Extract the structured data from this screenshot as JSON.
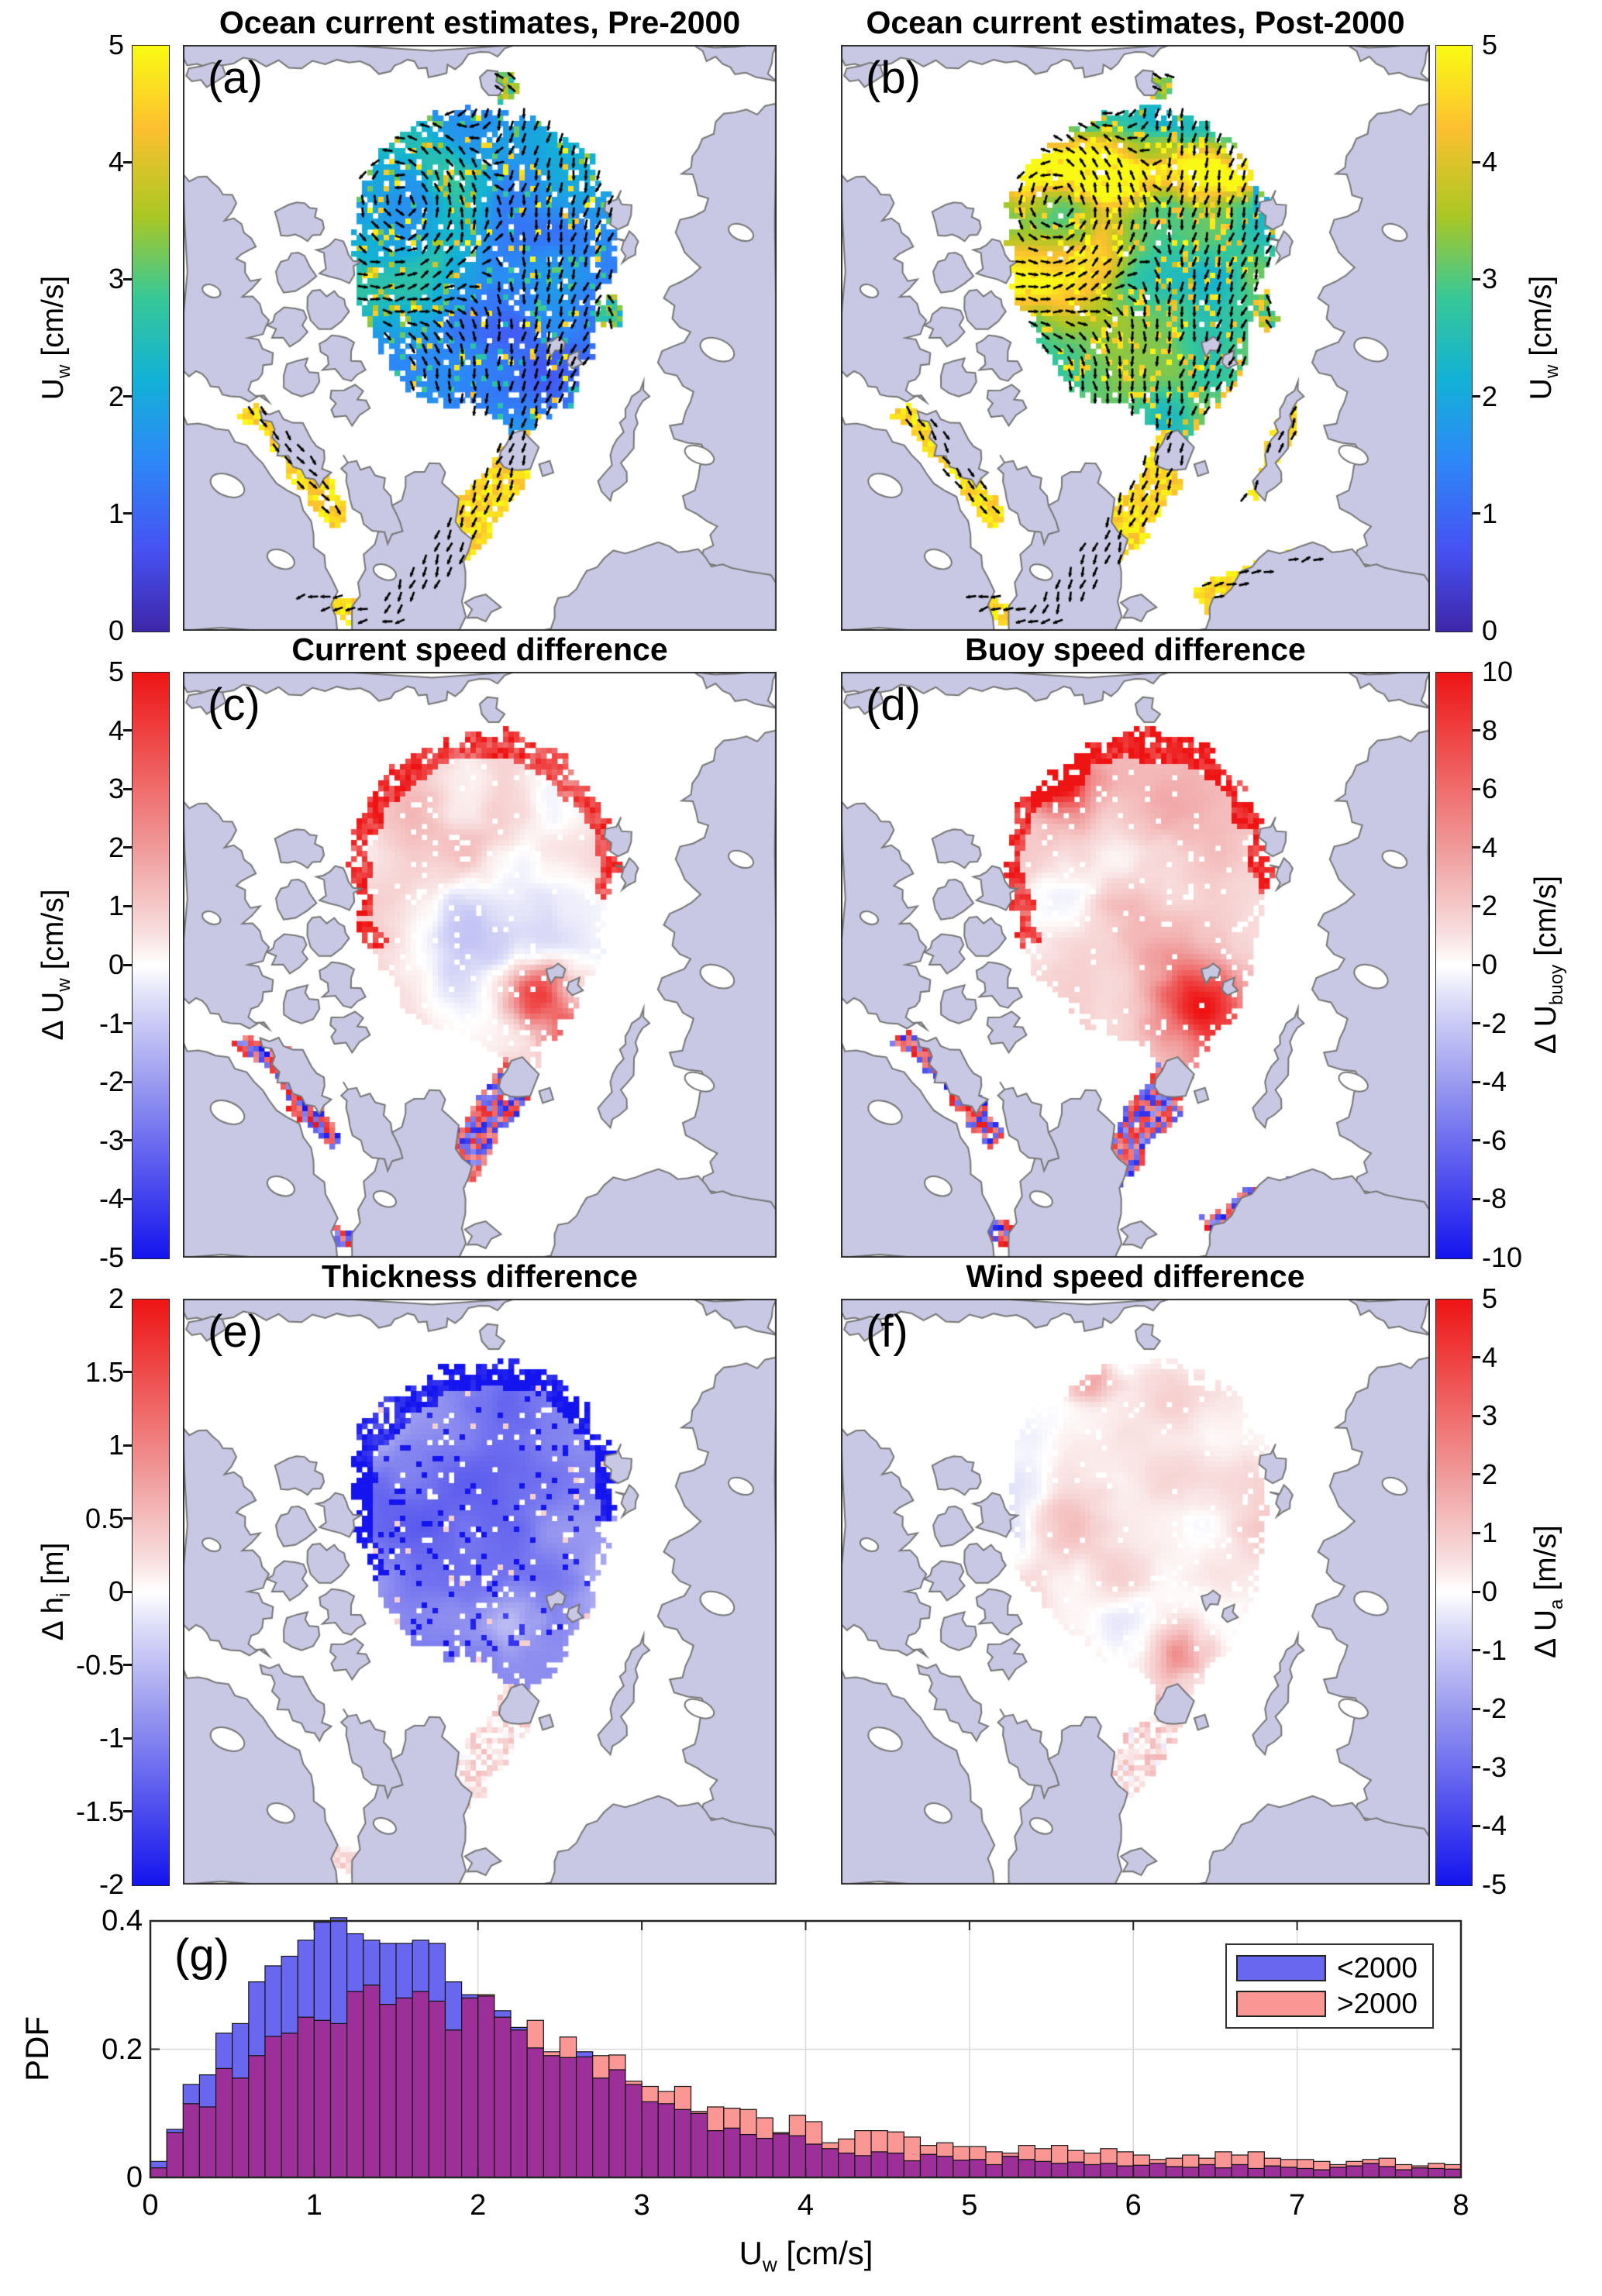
{
  "figure": {
    "background": "#ffffff"
  },
  "map_style": {
    "land_color": "#c8c8e4",
    "ocean_color": "#ffffff",
    "coast_color": "#777777",
    "frame_color": "#2b2b2b",
    "quiver_color": "#000000"
  },
  "colormaps": {
    "parula": [
      [
        "#3e26a8",
        0
      ],
      [
        "#4652f3",
        0.14
      ],
      [
        "#2d87f7",
        0.29
      ],
      [
        "#12b1d6",
        0.43
      ],
      [
        "#37c897",
        0.57
      ],
      [
        "#abc723",
        0.71
      ],
      [
        "#fdc02f",
        0.86
      ],
      [
        "#f9fb14",
        1
      ]
    ],
    "redblue": [
      [
        "#1414ee",
        0
      ],
      [
        "#4040ef",
        0.1
      ],
      [
        "#9a9af0",
        0.3
      ],
      [
        "#dcdcf8",
        0.44
      ],
      [
        "#ffffff",
        0.5
      ],
      [
        "#f8dcdc",
        0.56
      ],
      [
        "#f09a9a",
        0.7
      ],
      [
        "#ef4040",
        0.9
      ],
      [
        "#ee1414",
        1
      ]
    ]
  },
  "panels": {
    "a": {
      "letter": "(a)",
      "title": "Ocean current estimates, Pre-2000",
      "colorbar": {
        "side": "left",
        "range": [
          0,
          5
        ],
        "colormap": "parula",
        "ticks": [
          "5",
          "4",
          "3",
          "2",
          "1",
          "0"
        ],
        "label": {
          "pre": "U",
          "sub": "w",
          "post": " [cm/s]"
        }
      }
    },
    "b": {
      "letter": "(b)",
      "title": "Ocean current estimates, Post-2000",
      "colorbar": {
        "side": "right",
        "range": [
          0,
          5
        ],
        "colormap": "parula",
        "ticks": [
          "5",
          "4",
          "3",
          "2",
          "1",
          "0"
        ],
        "label": {
          "pre": "U",
          "sub": "w",
          "post": " [cm/s]"
        }
      }
    },
    "c": {
      "letter": "(c)",
      "title": "Current speed difference",
      "colorbar": {
        "side": "left",
        "range": [
          -5,
          5
        ],
        "colormap": "redblue",
        "ticks": [
          "5",
          "4",
          "3",
          "2",
          "1",
          "0",
          "-1",
          "-2",
          "-3",
          "-4",
          "-5"
        ],
        "label": {
          "pre": "Δ U",
          "sub": "w",
          "post": " [cm/s]"
        }
      }
    },
    "d": {
      "letter": "(d)",
      "title": "Buoy speed difference",
      "colorbar": {
        "side": "right",
        "range": [
          -10,
          10
        ],
        "colormap": "redblue",
        "ticks": [
          "10",
          "8",
          "6",
          "4",
          "2",
          "0",
          "-2",
          "-4",
          "-6",
          "-8",
          "-10"
        ],
        "label": {
          "pre": "Δ U",
          "sub": "buoy",
          "post": " [cm/s]"
        }
      }
    },
    "e": {
      "letter": "(e)",
      "title": "Thickness difference",
      "colorbar": {
        "side": "left",
        "range": [
          -2,
          2
        ],
        "colormap": "redblue",
        "ticks": [
          "2",
          "1.5",
          "1",
          "0.5",
          "0",
          "-0.5",
          "-1",
          "-1.5",
          "-2"
        ],
        "label": {
          "pre": "Δ h",
          "sub": "i",
          "post": " [m]"
        }
      }
    },
    "f": {
      "letter": "(f)",
      "title": "Wind speed difference",
      "colorbar": {
        "side": "right",
        "range": [
          -5,
          5
        ],
        "colormap": "redblue",
        "ticks": [
          "5",
          "4",
          "3",
          "2",
          "1",
          "0",
          "-1",
          "-2",
          "-3",
          "-4",
          "-5"
        ],
        "label": {
          "pre": "Δ U",
          "sub": "a",
          "post": " [m/s]"
        }
      }
    },
    "g": {
      "letter": "(g)"
    }
  },
  "chart_data": {
    "type": "histogram",
    "xlabel": {
      "pre": "U",
      "sub": "w",
      "post": " [cm/s]"
    },
    "ylabel": "PDF",
    "xlim": [
      0,
      8
    ],
    "ylim": [
      0,
      0.4
    ],
    "xticks": [
      "0",
      "1",
      "2",
      "3",
      "4",
      "5",
      "6",
      "7",
      "8"
    ],
    "yticks": [
      "0",
      "0.2",
      "0.4"
    ],
    "bin_start": 0,
    "bin_width": 0.1,
    "grid": true,
    "overlap_color": "#9c2f98",
    "legend": {
      "position": "top-right",
      "entries": [
        {
          "label": "<2000",
          "color": "#6966f0"
        },
        {
          "label": ">2000",
          "color": "#fa9795"
        }
      ]
    },
    "series": [
      {
        "name": "<2000",
        "color": "#6966f0",
        "values": [
          0.025,
          0.075,
          0.145,
          0.16,
          0.225,
          0.24,
          0.305,
          0.33,
          0.345,
          0.37,
          0.398,
          0.405,
          0.38,
          0.37,
          0.365,
          0.365,
          0.37,
          0.365,
          0.305,
          0.285,
          0.283,
          0.26,
          0.234,
          0.202,
          0.19,
          0.187,
          0.196,
          0.155,
          0.168,
          0.145,
          0.118,
          0.115,
          0.106,
          0.1,
          0.073,
          0.077,
          0.067,
          0.061,
          0.068,
          0.065,
          0.052,
          0.045,
          0.038,
          0.034,
          0.04,
          0.038,
          0.026,
          0.036,
          0.033,
          0.027,
          0.028,
          0.02,
          0.033,
          0.028,
          0.025,
          0.022,
          0.024,
          0.02,
          0.022,
          0.018,
          0.019,
          0.022,
          0.017,
          0.016,
          0.02,
          0.015,
          0.02,
          0.014,
          0.018,
          0.016,
          0.014,
          0.012,
          0.016,
          0.018,
          0.022,
          0.017,
          0.012,
          0.015,
          0.014,
          0.013
        ]
      },
      {
        "name": ">2000",
        "color": "#fa9795",
        "values": [
          0.015,
          0.07,
          0.115,
          0.11,
          0.17,
          0.155,
          0.19,
          0.22,
          0.225,
          0.25,
          0.245,
          0.24,
          0.29,
          0.3,
          0.27,
          0.28,
          0.29,
          0.275,
          0.23,
          0.28,
          0.285,
          0.25,
          0.23,
          0.245,
          0.196,
          0.219,
          0.188,
          0.19,
          0.191,
          0.15,
          0.142,
          0.134,
          0.142,
          0.103,
          0.11,
          0.108,
          0.106,
          0.093,
          0.07,
          0.097,
          0.087,
          0.054,
          0.06,
          0.073,
          0.073,
          0.071,
          0.063,
          0.05,
          0.054,
          0.048,
          0.048,
          0.04,
          0.038,
          0.05,
          0.045,
          0.05,
          0.042,
          0.038,
          0.045,
          0.04,
          0.035,
          0.028,
          0.03,
          0.035,
          0.03,
          0.04,
          0.035,
          0.04,
          0.03,
          0.028,
          0.028,
          0.025,
          0.02,
          0.025,
          0.028,
          0.03,
          0.02,
          0.018,
          0.022,
          0.02
        ]
      }
    ]
  }
}
